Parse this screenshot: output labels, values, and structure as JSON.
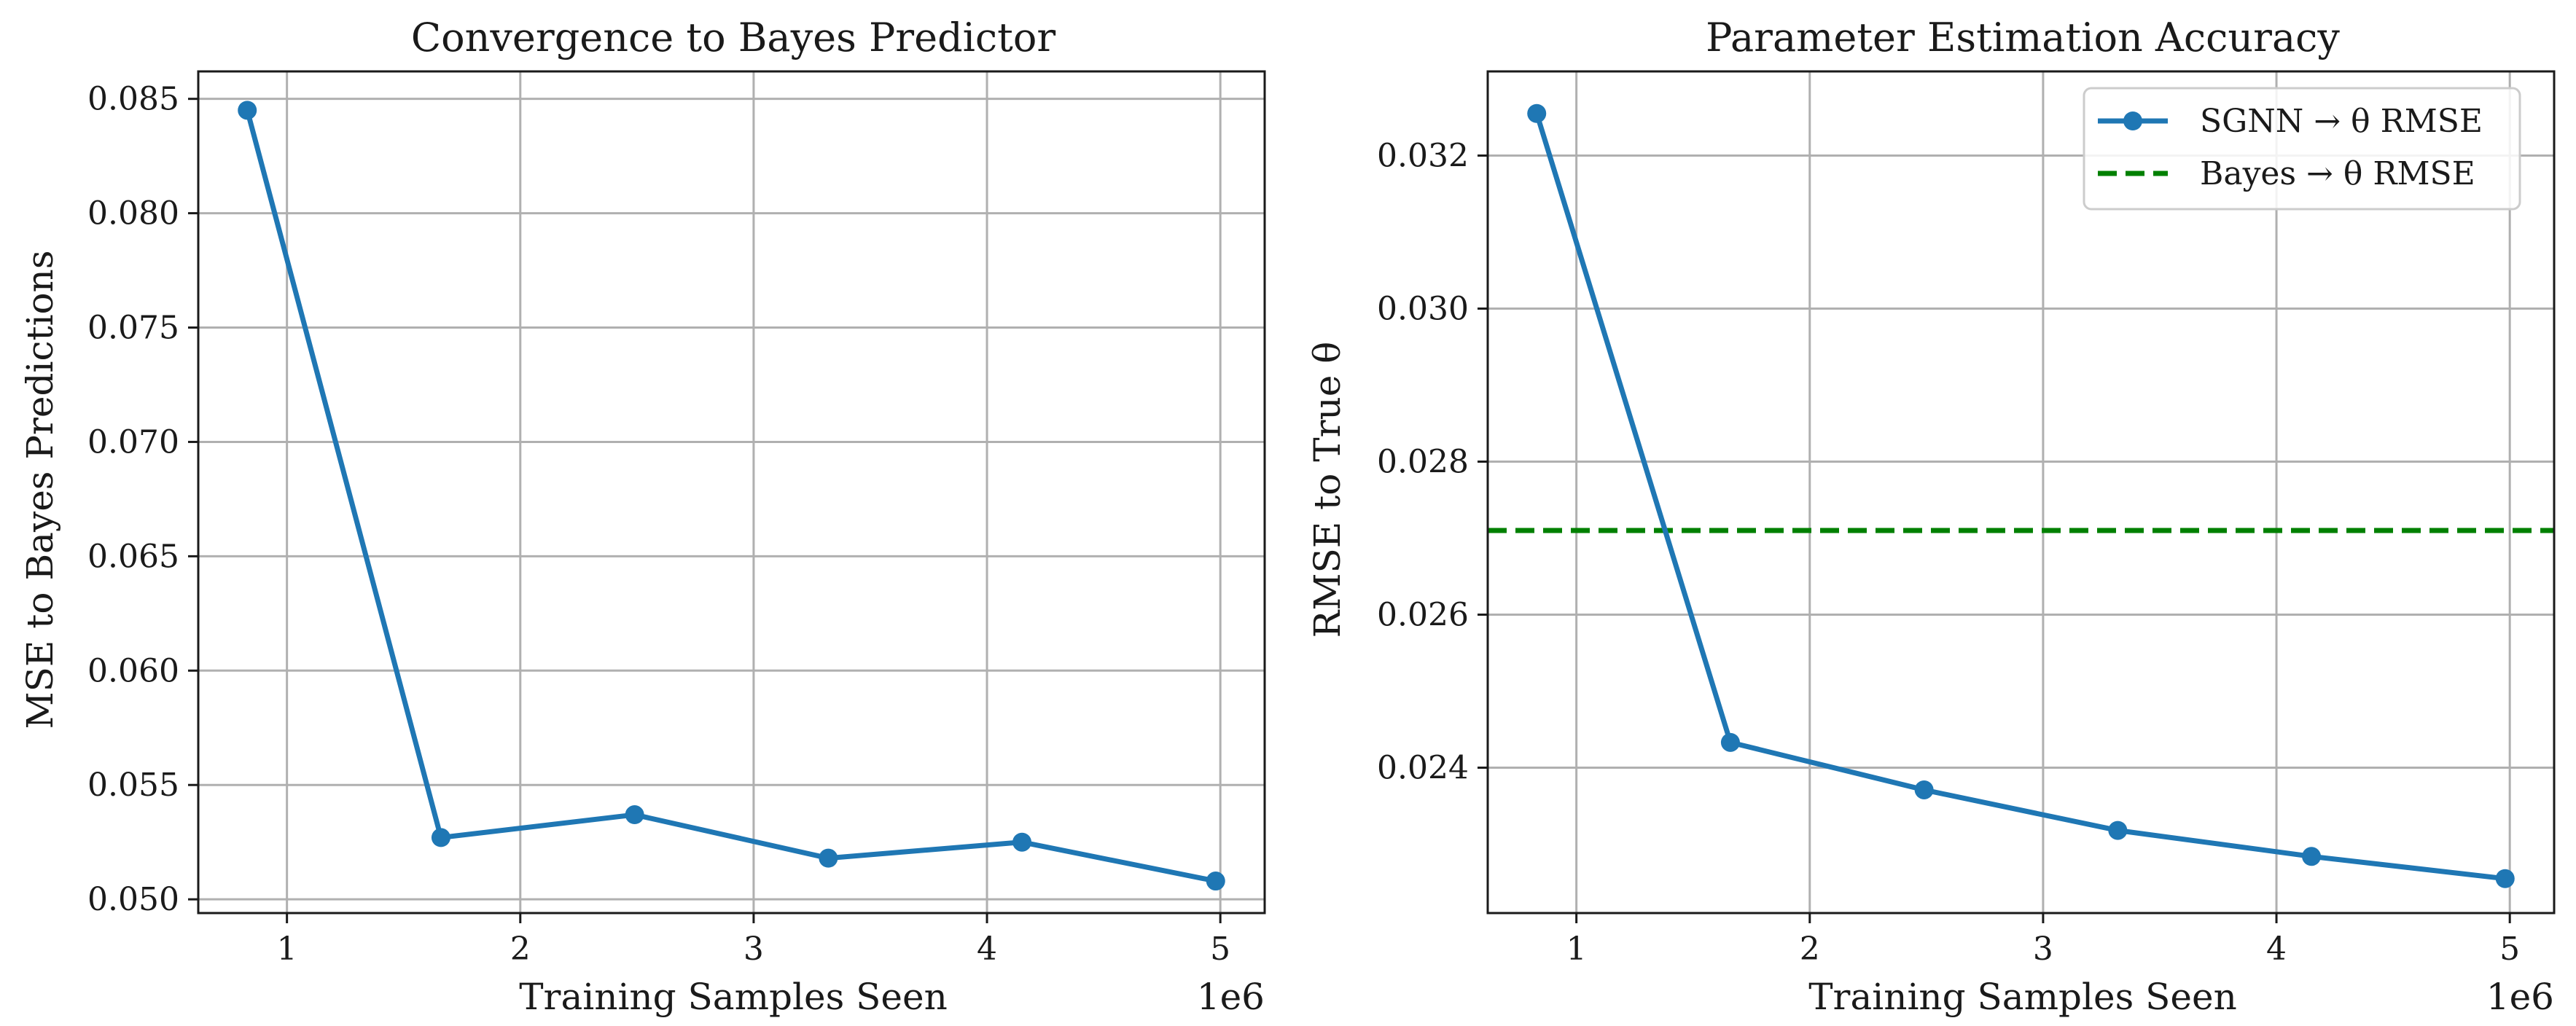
{
  "chart_data": [
    {
      "type": "line",
      "title": "Convergence to Bayes Predictor",
      "xlabel": "Training Samples Seen",
      "ylabel": "MSE to Bayes Predictions",
      "x_offset_label": "1e6",
      "xlim": [
        0.62,
        5.19
      ],
      "ylim": [
        0.0494,
        0.0862
      ],
      "xticks": [
        1,
        2,
        3,
        4,
        5
      ],
      "yticks": [
        0.05,
        0.055,
        0.06,
        0.065,
        0.07,
        0.075,
        0.08,
        0.085
      ],
      "xtick_labels": [
        "1",
        "2",
        "3",
        "4",
        "5"
      ],
      "ytick_labels": [
        "0.050",
        "0.055",
        "0.060",
        "0.065",
        "0.070",
        "0.075",
        "0.080",
        "0.085"
      ],
      "grid": true,
      "x": [
        0.83,
        1.66,
        2.49,
        3.32,
        4.15,
        4.98
      ],
      "series": [
        {
          "name": "",
          "values": [
            0.0845,
            0.0527,
            0.0537,
            0.0518,
            0.0525,
            0.0508
          ],
          "color": "#1f77b4",
          "style": "solid",
          "marker": "circle"
        }
      ],
      "legend": null
    },
    {
      "type": "line",
      "title": "Parameter Estimation Accuracy",
      "xlabel": "Training Samples Seen",
      "ylabel": "RMSE to True θ",
      "x_offset_label": "1e6",
      "xlim": [
        0.62,
        5.19
      ],
      "ylim": [
        0.0221,
        0.0331
      ],
      "xticks": [
        1,
        2,
        3,
        4,
        5
      ],
      "yticks": [
        0.024,
        0.026,
        0.028,
        0.03,
        0.032
      ],
      "xtick_labels": [
        "1",
        "2",
        "3",
        "4",
        "5"
      ],
      "ytick_labels": [
        "0.024",
        "0.026",
        "0.028",
        "0.030",
        "0.032"
      ],
      "grid": true,
      "x": [
        0.83,
        1.66,
        2.49,
        3.32,
        4.15,
        4.98
      ],
      "series": [
        {
          "name": "SGNN → θ RMSE",
          "values": [
            0.03255,
            0.02433,
            0.02371,
            0.02318,
            0.02284,
            0.02255
          ],
          "color": "#1f77b4",
          "style": "solid",
          "marker": "circle"
        }
      ],
      "hlines": [
        {
          "name": "Bayes → θ RMSE",
          "value": 0.0271,
          "color": "#008000",
          "style": "dashed"
        }
      ],
      "legend": "top-right"
    }
  ]
}
